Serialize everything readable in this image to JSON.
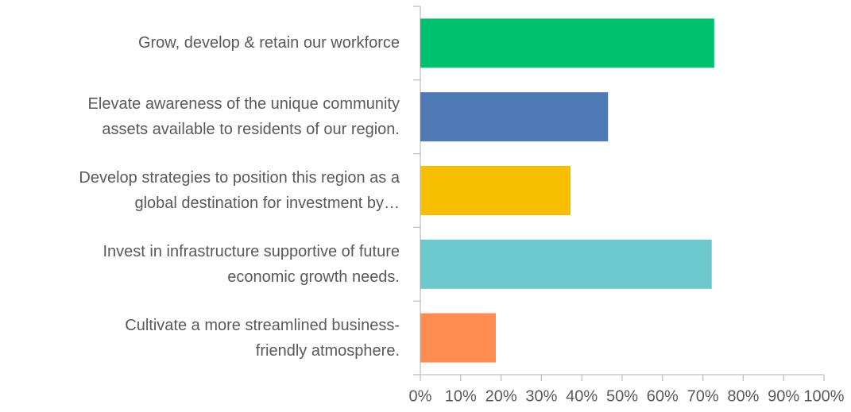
{
  "chart_data": {
    "type": "bar",
    "orientation": "horizontal",
    "categories": [
      "Grow, develop & retain our workforce",
      "Elevate awareness of the unique community\nassets available to residents of our region.",
      "Develop strategies to position this region as a\nglobal destination for investment by…",
      "Invest in infrastructure supportive of future\neconomic growth needs.",
      "Cultivate a more streamlined business-\nfriendly atmosphere."
    ],
    "values": [
      72.8,
      46.5,
      37.2,
      72.2,
      18.7
    ],
    "colors": [
      "#00c16e",
      "#4e7ab5",
      "#f7bf00",
      "#6cc8cc",
      "#ff8c50"
    ],
    "xlim": [
      0,
      100
    ],
    "xticks": [
      {
        "value": 0,
        "label": "0%"
      },
      {
        "value": 10,
        "label": "10%"
      },
      {
        "value": 20,
        "label": "20%"
      },
      {
        "value": 30,
        "label": "30%"
      },
      {
        "value": 40,
        "label": "40%"
      },
      {
        "value": 50,
        "label": "50%"
      },
      {
        "value": 60,
        "label": "60%"
      },
      {
        "value": 70,
        "label": "70%"
      },
      {
        "value": 80,
        "label": "80%"
      },
      {
        "value": 90,
        "label": "90%"
      },
      {
        "value": 100,
        "label": "100%"
      }
    ],
    "grid": false
  }
}
